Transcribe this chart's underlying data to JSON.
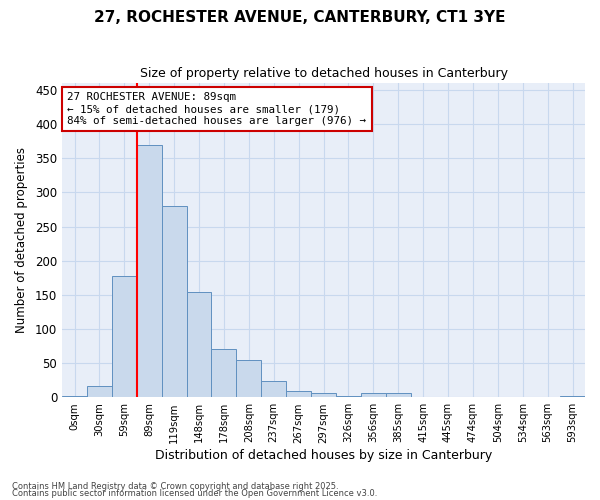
{
  "title1": "27, ROCHESTER AVENUE, CANTERBURY, CT1 3YE",
  "title2": "Size of property relative to detached houses in Canterbury",
  "xlabel": "Distribution of detached houses by size in Canterbury",
  "ylabel": "Number of detached properties",
  "bar_labels": [
    "0sqm",
    "30sqm",
    "59sqm",
    "89sqm",
    "119sqm",
    "148sqm",
    "178sqm",
    "208sqm",
    "237sqm",
    "267sqm",
    "297sqm",
    "326sqm",
    "356sqm",
    "385sqm",
    "415sqm",
    "445sqm",
    "474sqm",
    "504sqm",
    "534sqm",
    "563sqm",
    "593sqm"
  ],
  "bar_values": [
    2,
    17,
    178,
    370,
    280,
    154,
    70,
    54,
    24,
    9,
    7,
    2,
    7,
    7,
    1,
    0,
    0,
    0,
    0,
    0,
    2
  ],
  "bar_color": "#c9d9ec",
  "bar_edge_color": "#6090c0",
  "red_line_index": 3,
  "annotation_text": "27 ROCHESTER AVENUE: 89sqm\n← 15% of detached houses are smaller (179)\n84% of semi-detached houses are larger (976) →",
  "annotation_box_facecolor": "#ffffff",
  "annotation_box_edgecolor": "#cc0000",
  "footnote1": "Contains HM Land Registry data © Crown copyright and database right 2025.",
  "footnote2": "Contains public sector information licensed under the Open Government Licence v3.0.",
  "ylim": [
    0,
    460
  ],
  "yticks": [
    0,
    50,
    100,
    150,
    200,
    250,
    300,
    350,
    400,
    450
  ],
  "grid_color": "#c8d8ee",
  "bg_color": "#ffffff",
  "plot_bg_color": "#e8eef8"
}
